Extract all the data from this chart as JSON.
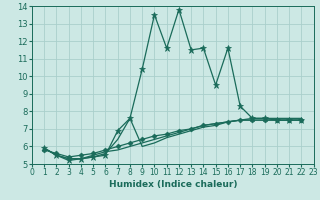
{
  "xlabel": "Humidex (Indice chaleur)",
  "xlim": [
    0,
    23
  ],
  "ylim": [
    5,
    14
  ],
  "yticks": [
    5,
    6,
    7,
    8,
    9,
    10,
    11,
    12,
    13,
    14
  ],
  "xticks": [
    0,
    1,
    2,
    3,
    4,
    5,
    6,
    7,
    8,
    9,
    10,
    11,
    12,
    13,
    14,
    15,
    16,
    17,
    18,
    19,
    20,
    21,
    22,
    23
  ],
  "bg_color": "#cce8e4",
  "grid_color": "#aacfcc",
  "line_color": "#1a6b5a",
  "lines": [
    {
      "x": [
        1,
        2,
        3,
        4,
        5,
        6,
        7,
        8,
        9,
        10,
        11,
        12,
        13,
        14,
        15,
        16,
        17,
        18,
        19,
        20,
        21,
        22
      ],
      "y": [
        5.9,
        5.5,
        5.2,
        5.3,
        5.4,
        5.5,
        6.9,
        7.6,
        10.4,
        13.5,
        11.6,
        13.8,
        11.5,
        11.6,
        9.5,
        11.6,
        8.3,
        7.6,
        7.6,
        7.5,
        7.5,
        7.5
      ],
      "marker": "*",
      "ms": 4.5
    },
    {
      "x": [
        1,
        2,
        3,
        4,
        5,
        6,
        7,
        8,
        9,
        10,
        11,
        12,
        13,
        14,
        15,
        16,
        17,
        18,
        19,
        20,
        21,
        22
      ],
      "y": [
        5.9,
        5.5,
        5.3,
        5.3,
        5.4,
        5.6,
        6.4,
        7.6,
        6.0,
        6.2,
        6.5,
        6.7,
        6.9,
        7.1,
        7.2,
        7.4,
        7.5,
        7.6,
        7.6,
        7.6,
        7.6,
        7.6
      ],
      "marker": null,
      "ms": 0
    },
    {
      "x": [
        1,
        2,
        3,
        4,
        5,
        6,
        7,
        8,
        9,
        10,
        11,
        12,
        13,
        14,
        15,
        16,
        17,
        18,
        19,
        20,
        21,
        22
      ],
      "y": [
        5.9,
        5.5,
        5.3,
        5.3,
        5.5,
        5.7,
        5.8,
        6.0,
        6.2,
        6.4,
        6.6,
        6.8,
        7.0,
        7.2,
        7.3,
        7.4,
        7.5,
        7.5,
        7.5,
        7.5,
        7.5,
        7.5
      ],
      "marker": null,
      "ms": 0
    },
    {
      "x": [
        1,
        2,
        3,
        4,
        5,
        6,
        7,
        8,
        9,
        10,
        11,
        12,
        13,
        14,
        15,
        16,
        17,
        18,
        19,
        20,
        21,
        22
      ],
      "y": [
        5.8,
        5.6,
        5.4,
        5.5,
        5.6,
        5.8,
        6.0,
        6.2,
        6.4,
        6.6,
        6.7,
        6.9,
        7.0,
        7.2,
        7.3,
        7.4,
        7.5,
        7.5,
        7.5,
        7.5,
        7.5,
        7.5
      ],
      "marker": "D",
      "ms": 2.5
    }
  ],
  "lw": 0.9,
  "xlabel_fontsize": 6.5,
  "tick_fontsize_x": 5.5,
  "tick_fontsize_y": 6
}
